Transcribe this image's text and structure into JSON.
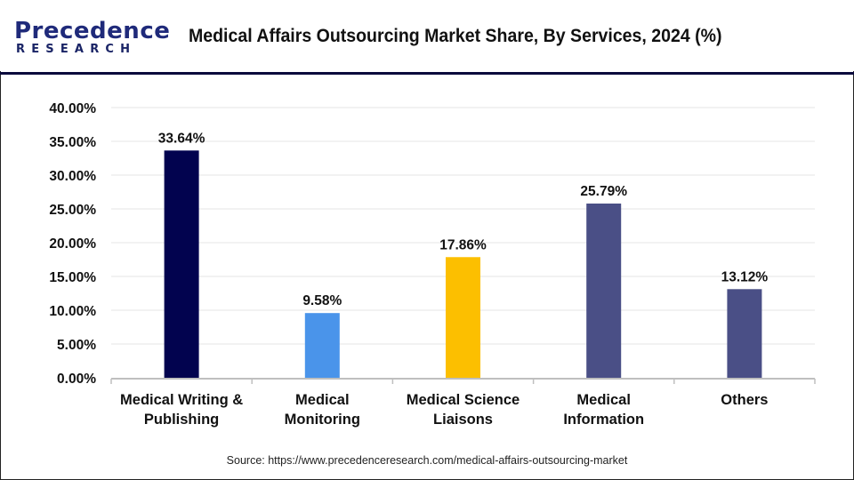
{
  "header": {
    "logo": {
      "top": "Precedence",
      "bottom": "RESEARCH"
    },
    "title": "Medical Affairs Outsourcing Market Share, By Services, 2024 (%)"
  },
  "source": "Source: https://www.precedenceresearch.com/medical-affairs-outsourcing-market",
  "chart_data": {
    "type": "bar",
    "title": "Medical Affairs Outsourcing Market Share, By Services, 2024 (%)",
    "xlabel": "",
    "ylabel": "",
    "ylim": [
      0,
      40
    ],
    "yticks": [
      0,
      5,
      10,
      15,
      20,
      25,
      30,
      35,
      40
    ],
    "ytick_labels": [
      "0.00%",
      "5.00%",
      "10.00%",
      "15.00%",
      "20.00%",
      "25.00%",
      "30.00%",
      "35.00%",
      "40.00%"
    ],
    "grid": true,
    "legend": "none",
    "categories": [
      [
        "Medical Writing &",
        "Publishing"
      ],
      [
        "Medical",
        "Monitoring"
      ],
      [
        "Medical Science",
        "Liaisons"
      ],
      [
        "Medical",
        "Information"
      ],
      [
        "Others"
      ]
    ],
    "values": [
      33.64,
      9.58,
      17.86,
      25.79,
      13.12
    ],
    "data_labels": [
      "33.64%",
      "9.58%",
      "17.86%",
      "25.79%",
      "13.12%"
    ],
    "colors": [
      "#02034f",
      "#4a94ea",
      "#fcbf00",
      "#4a4f86",
      "#4a4f86"
    ]
  }
}
